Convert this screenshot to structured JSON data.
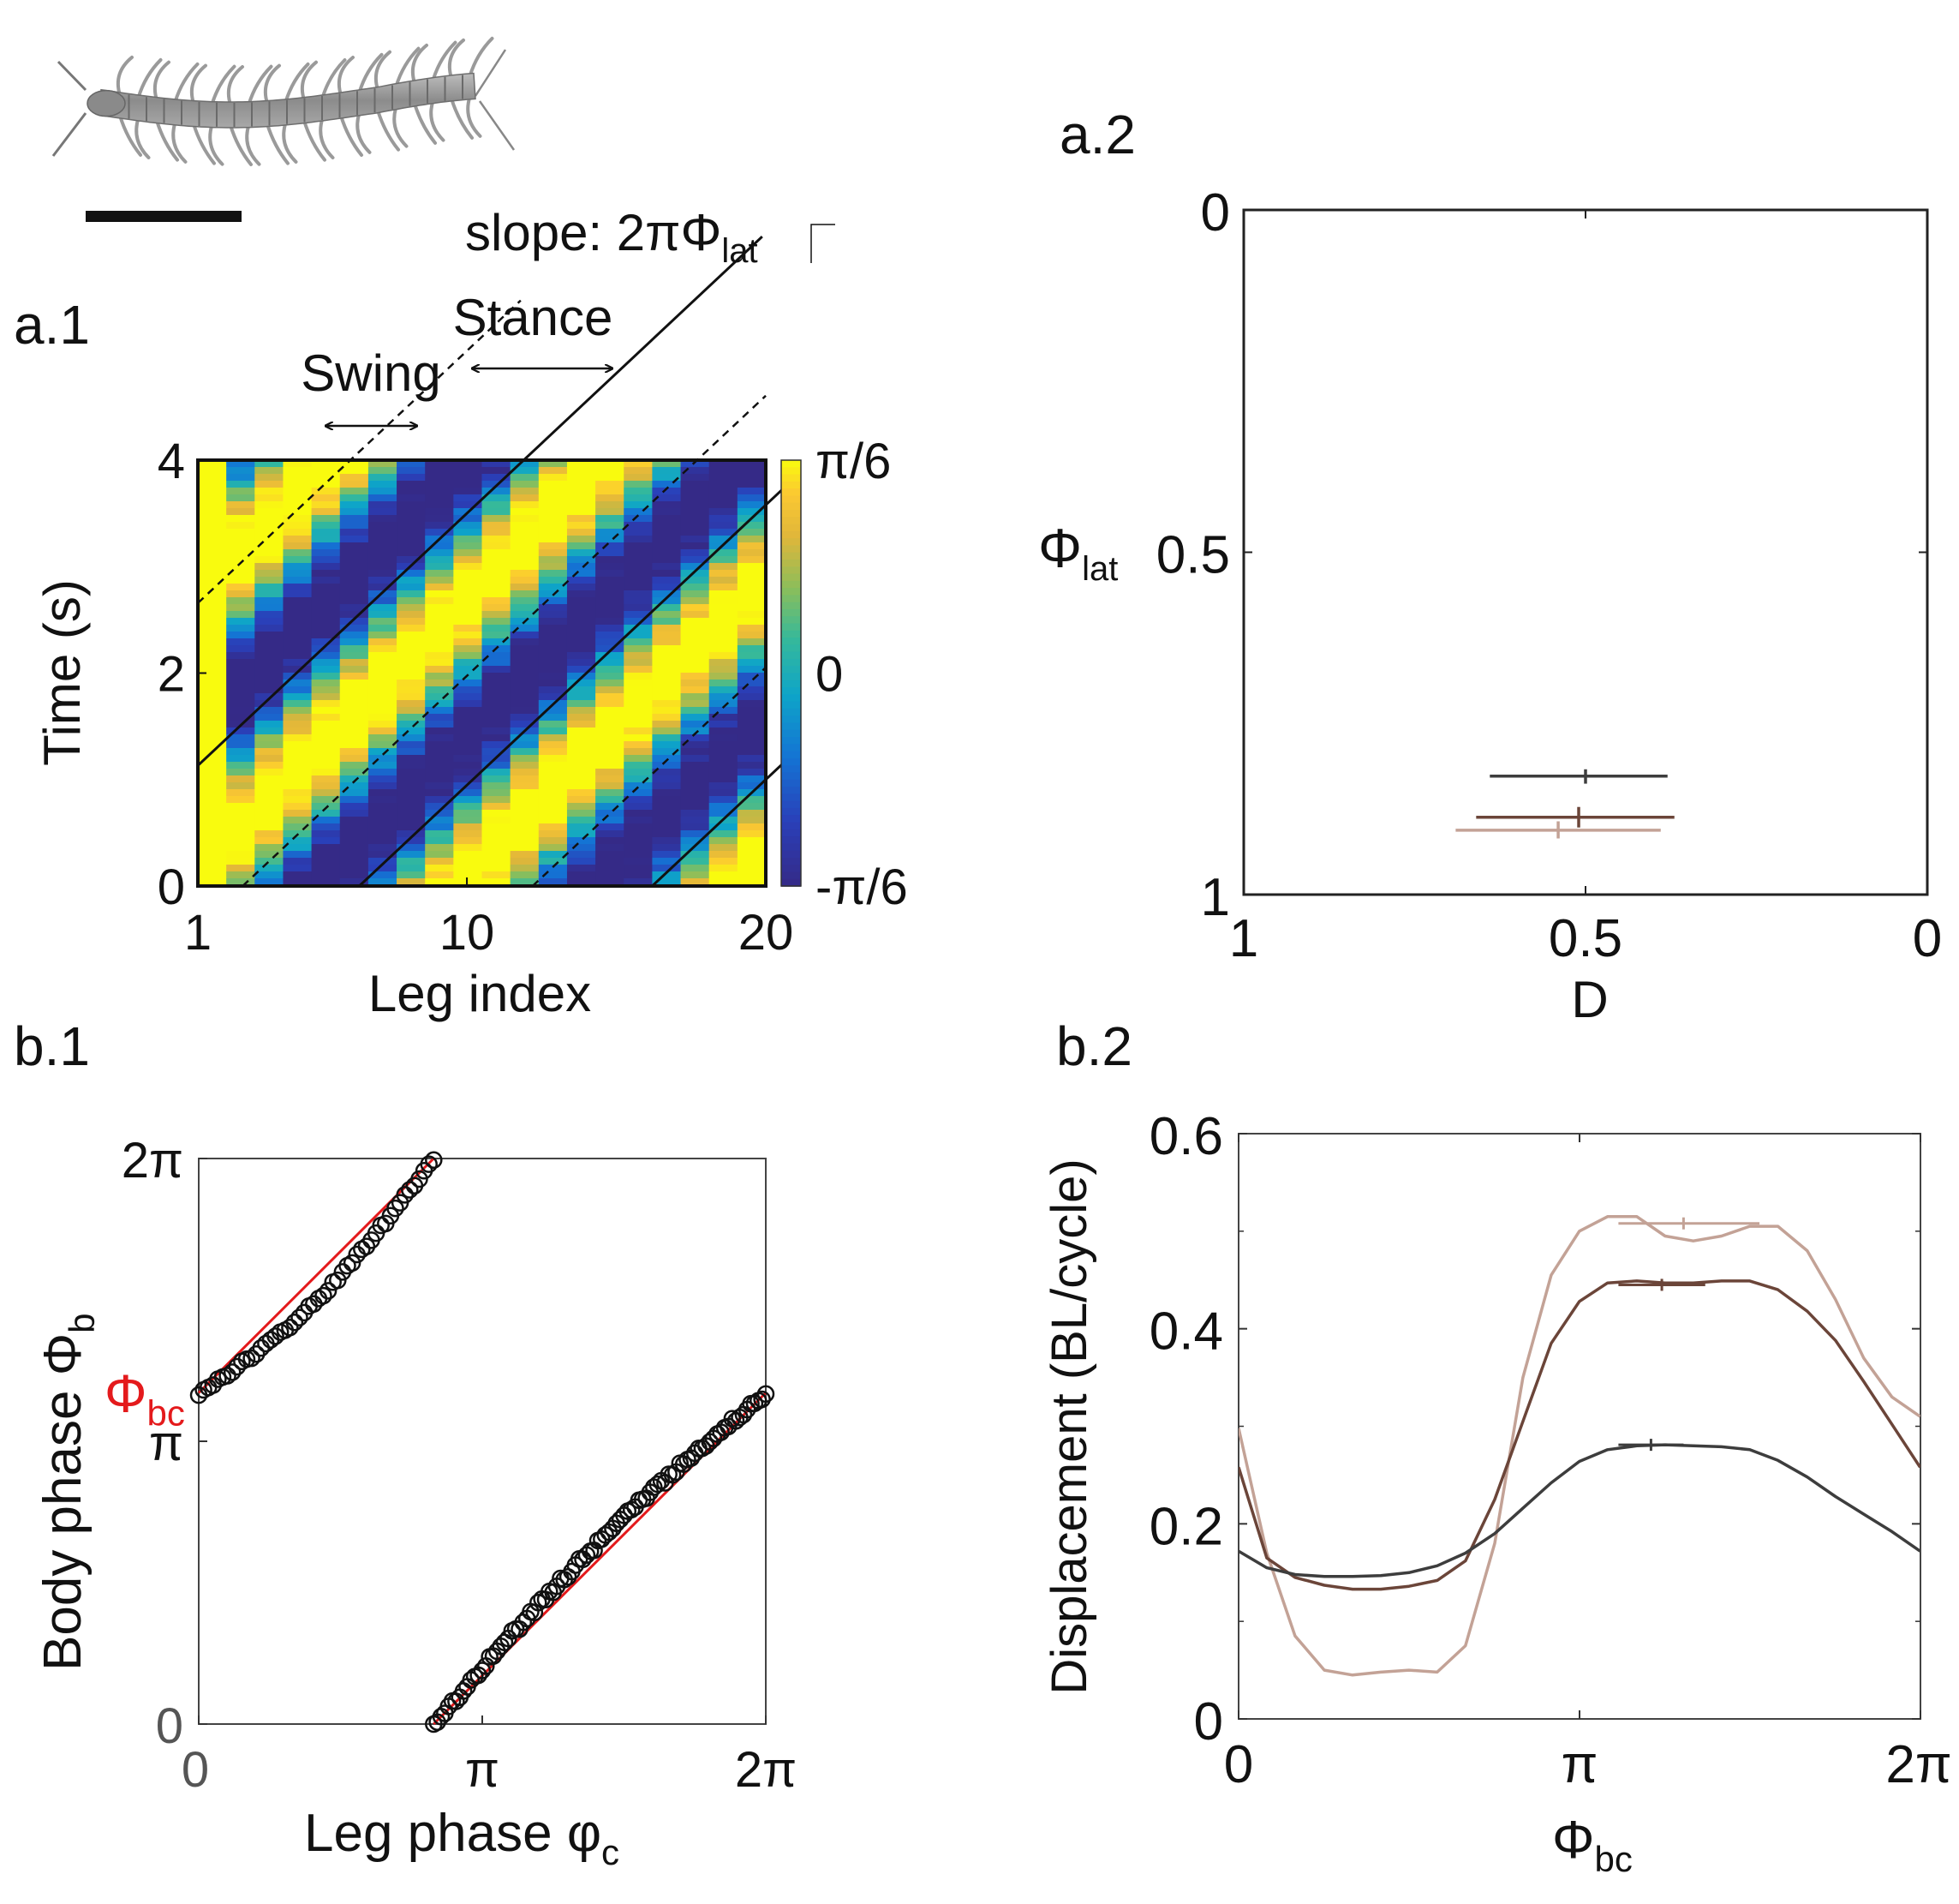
{
  "panel_labels": {
    "a1": "a.1",
    "a2": "a.2",
    "b1": "b.1",
    "b2": "b.2"
  },
  "colors": {
    "black": "#111111",
    "red": "#e41a1c",
    "series_dark": "#3d3d3d",
    "series_mid": "#6b4539",
    "series_light": "#c3a296",
    "parula_low": "#352a87",
    "parula_mid": "#0ea5c8",
    "parula_high": "#f9fb0e"
  },
  "centipede_illustration": {
    "icon": "centipede-illustration",
    "scale_bar": "scale-bar"
  },
  "chart_data": [
    {
      "id": "a1",
      "type": "heatmap",
      "xlabel": "Leg index",
      "ylabel": "Time (s)",
      "xlim": [
        1,
        20
      ],
      "ylim": [
        0,
        4
      ],
      "xticks": [
        {
          "value": 1,
          "label": "1"
        },
        {
          "value": 10,
          "label": "10"
        },
        {
          "value": 20,
          "label": "20"
        }
      ],
      "yticks": [
        {
          "value": 0,
          "label": "0"
        },
        {
          "value": 2,
          "label": "2"
        },
        {
          "value": 4,
          "label": "4"
        }
      ],
      "colorbar": {
        "ticks": [
          "π/6",
          "0",
          "-π/6"
        ],
        "range": [
          -0.5236,
          0.5236
        ]
      },
      "wave_slope_legs_per_s": 3.8,
      "stance_fraction": 0.52,
      "phase_lines": {
        "solid_leg_at_t0": [
          -3.3,
          6.4,
          16.2
        ],
        "dashed_leg_at_t0": [
          -9.1,
          2.5,
          12.2
        ]
      },
      "annotations": {
        "swing": "Swing",
        "stance": "Stance",
        "slope_prefix": "slope: 2π",
        "slope_symbol": "Φ",
        "slope_sub": "lat"
      }
    },
    {
      "id": "a2",
      "type": "scatter",
      "xlabel": "D",
      "ylabel_symbol": "Φ",
      "ylabel_sub": "lat",
      "xlim": [
        1,
        0
      ],
      "ylim": [
        0,
        1
      ],
      "xticks": [
        {
          "value": 1,
          "label": "1"
        },
        {
          "value": 0.5,
          "label": "0.5"
        },
        {
          "value": 0,
          "label": "0"
        }
      ],
      "yticks": [
        {
          "value": 0,
          "label": "0"
        },
        {
          "value": 0.5,
          "label": "0.5"
        },
        {
          "value": 1,
          "label": "1"
        }
      ],
      "points": [
        {
          "series": "dark",
          "x": 0.5,
          "y": 0.827,
          "x_err": [
            0.38,
            0.64
          ],
          "y_err": [
            0.817,
            0.838
          ]
        },
        {
          "series": "mid",
          "x": 0.51,
          "y": 0.887,
          "x_err": [
            0.37,
            0.66
          ],
          "y_err": [
            0.872,
            0.902
          ]
        },
        {
          "series": "light",
          "x": 0.54,
          "y": 0.906,
          "x_err": [
            0.39,
            0.69
          ],
          "y_err": [
            0.893,
            0.918
          ]
        }
      ]
    },
    {
      "id": "b1",
      "type": "scatter",
      "xlabel_text": "Leg phase φ",
      "xlabel_sub": "c",
      "ylabel_text": "Body phase Φ",
      "ylabel_sub": "b",
      "marker_label_symbol": "Φ",
      "marker_label_sub": "bc",
      "marker_value": 3.68,
      "xlim": [
        0,
        6.2832
      ],
      "ylim": [
        0,
        6.2832
      ],
      "xticks": [
        {
          "value": 0,
          "label": "0"
        },
        {
          "value": 3.1416,
          "label": "π"
        },
        {
          "value": 6.2832,
          "label": "2π"
        }
      ],
      "yticks": [
        {
          "value": 0,
          "label": "0"
        },
        {
          "value": 3.1416,
          "label": "π"
        },
        {
          "value": 6.2832,
          "label": "2π"
        }
      ],
      "fit_offset": 3.68,
      "upper_branch_bend": 0.28,
      "lower_branch_bend": 0.19,
      "points_upper_count": 50,
      "points_lower_count": 90
    },
    {
      "id": "b2",
      "type": "line",
      "xlabel_symbol": "Φ",
      "xlabel_sub": "bc",
      "ylabel": "Displacement (BL/cycle)",
      "xlim": [
        0,
        6.2832
      ],
      "ylim": [
        0,
        0.6
      ],
      "xticks": [
        {
          "value": 0,
          "label": "0"
        },
        {
          "value": 3.1416,
          "label": "π"
        },
        {
          "value": 6.2832,
          "label": "2π"
        }
      ],
      "yticks": [
        {
          "value": 0,
          "label": "0"
        },
        {
          "value": 0.2,
          "label": "0.2"
        },
        {
          "value": 0.4,
          "label": "0.4"
        },
        {
          "value": 0.6,
          "label": "0.6"
        }
      ],
      "x": [
        0,
        0.26,
        0.52,
        0.79,
        1.05,
        1.31,
        1.57,
        1.83,
        2.09,
        2.36,
        2.62,
        2.88,
        3.14,
        3.4,
        3.67,
        3.93,
        4.19,
        4.45,
        4.71,
        4.97,
        5.24,
        5.5,
        5.76,
        6.02,
        6.28
      ],
      "series": [
        {
          "key": "dark",
          "values": [
            0.172,
            0.155,
            0.148,
            0.146,
            0.146,
            0.147,
            0.15,
            0.157,
            0.17,
            0.19,
            0.216,
            0.242,
            0.264,
            0.276,
            0.28,
            0.281,
            0.28,
            0.279,
            0.276,
            0.265,
            0.248,
            0.228,
            0.21,
            0.192,
            0.172
          ],
          "marker": {
            "x": 3.8,
            "y": 0.281,
            "x_err": [
              3.5,
              4.1
            ]
          }
        },
        {
          "key": "mid",
          "values": [
            0.258,
            0.165,
            0.145,
            0.137,
            0.133,
            0.133,
            0.136,
            0.142,
            0.162,
            0.225,
            0.305,
            0.385,
            0.428,
            0.447,
            0.449,
            0.447,
            0.447,
            0.449,
            0.449,
            0.44,
            0.418,
            0.388,
            0.346,
            0.302,
            0.258
          ],
          "marker": {
            "x": 3.9,
            "y": 0.445,
            "x_err": [
              3.5,
              4.3
            ]
          }
        },
        {
          "key": "light",
          "values": [
            0.298,
            0.17,
            0.085,
            0.05,
            0.045,
            0.048,
            0.05,
            0.048,
            0.075,
            0.18,
            0.35,
            0.455,
            0.5,
            0.515,
            0.515,
            0.495,
            0.49,
            0.495,
            0.505,
            0.505,
            0.48,
            0.43,
            0.37,
            0.33,
            0.31
          ],
          "marker": {
            "x": 4.1,
            "y": 0.508,
            "x_err": [
              3.5,
              4.8
            ]
          }
        }
      ]
    }
  ]
}
